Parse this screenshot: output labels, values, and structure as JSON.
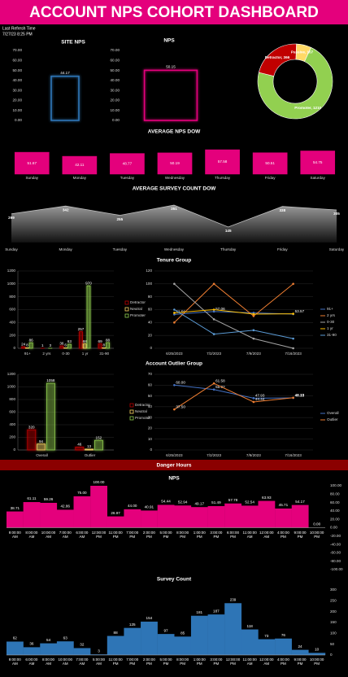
{
  "header": {
    "title": "ACCOUNT NPS COHORT DASHBOARD",
    "refresh_label": "Last Refresh Time",
    "refresh_time": "7/27/23 8:25 PM"
  },
  "section_banner": "Danger Hours",
  "chart_data": [
    {
      "type": "bar",
      "title": "SITE NPS",
      "bar_style": "outline",
      "color": "#2e75b6",
      "values": [
        44.17
      ],
      "value_labels": [
        "44.17"
      ],
      "ylim": [
        0,
        70
      ],
      "yticks": [
        {
          "value": 0,
          "label": "0.00"
        },
        {
          "value": 10,
          "label": "10.00"
        },
        {
          "value": 20,
          "label": "20.00"
        },
        {
          "value": 30,
          "label": "30.00"
        },
        {
          "value": 40,
          "label": "40.00"
        },
        {
          "value": 50,
          "label": "50.00"
        },
        {
          "value": 60,
          "label": "60.00"
        },
        {
          "value": 70,
          "label": "70.00"
        }
      ]
    },
    {
      "type": "bar",
      "title": "NPS",
      "bar_style": "outline",
      "color": "#e4007c",
      "values": [
        50.15
      ],
      "value_labels": [
        "50.15"
      ],
      "ylim": [
        0,
        70
      ],
      "yticks": [
        {
          "value": 0,
          "label": "0.00"
        },
        {
          "value": 10,
          "label": "10.00"
        },
        {
          "value": 20,
          "label": "20.00"
        },
        {
          "value": 30,
          "label": "30.00"
        },
        {
          "value": 40,
          "label": "40.00"
        },
        {
          "value": 50,
          "label": "50.00"
        },
        {
          "value": 60,
          "label": "60.00"
        },
        {
          "value": 70,
          "label": "70.00"
        }
      ]
    },
    {
      "type": "pie",
      "donut": true,
      "categories": [
        "Promoter",
        "Detractor",
        "Passive"
      ],
      "values": [
        1210,
        366,
        107
      ],
      "value_labels": [
        "Promoter, 1210",
        "Detractor, 366",
        "Passive, 107"
      ],
      "colors": [
        "#92d050",
        "#c00000",
        "#ffd966"
      ]
    },
    {
      "type": "bar",
      "title": "AVERAGE NPS DOW",
      "bar_style": "solid",
      "color": "#e4007c",
      "categories": [
        "Sunday",
        "Monday",
        "Tuesday",
        "Wednesday",
        "Thursday",
        "Friday",
        "Saturday"
      ],
      "values": [
        51.67,
        42.11,
        48.77,
        50.19,
        57.58,
        50.51,
        54.75
      ]
    },
    {
      "type": "area",
      "title": "AVERAGE SURVEY COUNT DOW",
      "color": "#bfbfbf",
      "categories": [
        "Sunday",
        "Monday",
        "Tuesday",
        "Wednesday",
        "Thursday",
        "Friday",
        "Saturday"
      ],
      "values": [
        269,
        342,
        255,
        351,
        145,
        338,
        305
      ]
    },
    {
      "type": "grouped_bar",
      "title": "Tenure Group",
      "grid": true,
      "categories": [
        "91+",
        "2 yrs",
        "0-30",
        "1 yr",
        "31-90"
      ],
      "series": [
        {
          "name": "Detractor",
          "color": "#c00000",
          "values": [
            24,
            1,
            36,
            257,
            69
          ]
        },
        {
          "name": "Neutral",
          "color": "#ffd966",
          "values": [
            8,
            null,
            6,
            68,
            8
          ]
        },
        {
          "name": "Promoter",
          "color": "#92d050",
          "values": [
            86,
            3,
            63,
            970,
            88
          ]
        }
      ],
      "ylim": [
        0,
        1200
      ],
      "yticks": [
        0,
        200,
        400,
        600,
        800,
        1000,
        1200
      ]
    },
    {
      "type": "line",
      "grid": true,
      "categories": [
        "6/25/2023",
        "7/2/2023",
        "7/9/2023",
        "7/16/2023"
      ],
      "series": [
        {
          "name": "91+",
          "color": "#4472c4",
          "values": [
            52.56,
            57.06,
            55,
            53
          ],
          "value_labels": [
            "52.56",
            "57.06",
            null,
            null
          ]
        },
        {
          "name": "2 yrs",
          "color": "#ed7d31",
          "values": [
            40,
            100,
            50,
            100
          ]
        },
        {
          "name": "0-30",
          "color": "#a5a5a5",
          "values": [
            100,
            45,
            15,
            0
          ]
        },
        {
          "name": "1 yr",
          "color": "#ffc000",
          "values": [
            55,
            60,
            53,
            53.57
          ],
          "value_labels": [
            null,
            null,
            null,
            "53.57"
          ]
        },
        {
          "name": "31-90",
          "color": "#5b9bd5",
          "values": [
            60,
            22,
            28,
            15
          ]
        }
      ],
      "ylim": [
        0,
        120
      ],
      "yticks": [
        0,
        20,
        40,
        60,
        80,
        100,
        120
      ]
    },
    {
      "type": "grouped_bar",
      "title": "Account Outlier Group",
      "grid": true,
      "categories": [
        "Overall",
        "Outlier"
      ],
      "series": [
        {
          "name": "Detractor",
          "color": "#c00000",
          "values": [
            320,
            46
          ]
        },
        {
          "name": "Neutral",
          "color": "#ffd966",
          "values": [
            94,
            13
          ]
        },
        {
          "name": "Promoter",
          "color": "#92d050",
          "values": [
            1058,
            152
          ]
        }
      ],
      "ylim": [
        0,
        1200
      ],
      "yticks": [
        0,
        200,
        400,
        600,
        800,
        1000,
        1200
      ]
    },
    {
      "type": "line",
      "grid": true,
      "categories": [
        "6/25/2023",
        "7/2/2023",
        "7/9/2023",
        "7/16/2023"
      ],
      "series": [
        {
          "name": "Overall",
          "color": "#4472c4",
          "values": [
            60,
            55.92,
            47.93,
            48.13
          ],
          "value_labels": [
            "60.00",
            "55.92",
            "47.93",
            "48.13"
          ]
        },
        {
          "name": "Outlier",
          "color": "#ed7d31",
          "values": [
            37.5,
            61.58,
            44.44,
            48.33
          ],
          "value_labels": [
            "37.50",
            "61.58",
            "44.44",
            "48.33"
          ]
        }
      ],
      "ylim": [
        0,
        70
      ],
      "yticks": [
        0,
        10,
        20,
        30,
        40,
        50,
        60,
        70
      ]
    },
    {
      "type": "step_area",
      "title": "NPS",
      "color": "#e4007c",
      "categories": [
        "9:00:00 AM",
        "8:00:00 AM",
        "10:00:00 AM",
        "7:00:00 AM",
        "6:00:00 AM",
        "12:00:00 PM",
        "11:00:00 PM",
        "7:00:00 PM",
        "2:00:00 PM",
        "5:00:00 PM",
        "8:00:00 PM",
        "1:00:00 PM",
        "3:00:00 PM",
        "6:00:00 PM",
        "11:00:00 AM",
        "12:00:00 AM",
        "4:00:00 PM",
        "9:00:00 PM",
        "10:00:00 PM"
      ],
      "values": [
        38.71,
        61.11,
        59.26,
        42.86,
        75,
        100,
        26.97,
        44,
        40.91,
        54.44,
        52.94,
        49.17,
        51.49,
        57.78,
        52.54,
        63.93,
        45.71,
        54.17,
        0
      ],
      "value_labels": [
        "38.71",
        "61.11",
        "59.26",
        "42.86",
        "75.00",
        "100.00",
        "26.97",
        "44.00",
        "40.91",
        "54.44",
        "52.94",
        "49.17",
        "51.49",
        "57.78",
        "52.54",
        "63.93",
        "45.71",
        "54.17",
        "0.00"
      ],
      "y2lim": [
        -100,
        100
      ],
      "y2ticks": [
        {
          "value": 100,
          "label": "100.00"
        },
        {
          "value": 80,
          "label": "80.00"
        },
        {
          "value": 60,
          "label": "60.00"
        },
        {
          "value": 40,
          "label": "40.00"
        },
        {
          "value": 20,
          "label": "20.00"
        },
        {
          "value": 0,
          "label": "0.00"
        },
        {
          "value": -20,
          "label": "-20.00"
        },
        {
          "value": -40,
          "label": "-40.00"
        },
        {
          "value": -60,
          "label": "-60.00"
        },
        {
          "value": -80,
          "label": "-80.00"
        },
        {
          "value": -100,
          "label": "-100.00"
        }
      ]
    },
    {
      "type": "step_area",
      "title": "Survey Count",
      "color": "#2e75b6",
      "categories": [
        "9:00:00 AM",
        "6:00:00 AM",
        "8:00:00 AM",
        "10:00:00 AM",
        "7:00:00 AM",
        "5:00:00 AM",
        "11:00:00 PM",
        "7:00:00 PM",
        "2:00:00 PM",
        "5:00:00 PM",
        "8:00:00 PM",
        "1:00:00 PM",
        "3:00:00 PM",
        "12:00:00 PM",
        "11:00:00 AM",
        "12:00:00 AM",
        "4:00:00 PM",
        "9:00:00 PM",
        "10:00:00 PM"
      ],
      "values": [
        62,
        36,
        54,
        63,
        32,
        3,
        88,
        125,
        154,
        97,
        85,
        181,
        187,
        239,
        118,
        73,
        76,
        24,
        10
      ],
      "y2lim": [
        0,
        300
      ],
      "y2ticks": [
        0,
        50,
        100,
        150,
        200,
        250,
        300
      ]
    }
  ]
}
